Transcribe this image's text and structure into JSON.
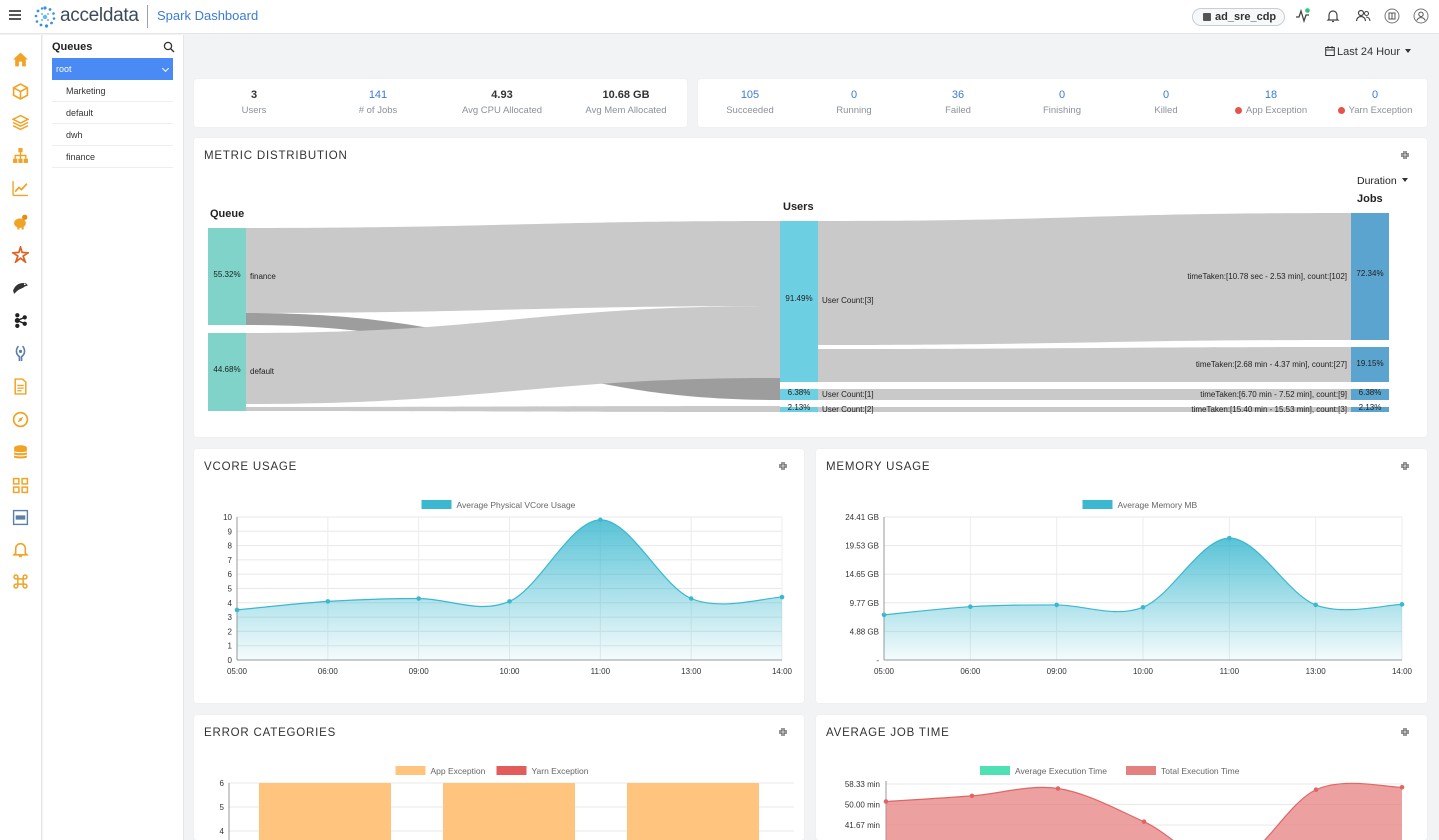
{
  "header": {
    "brand": "acceldata",
    "app_title": "Spark Dashboard",
    "cluster": "ad_sre_cdp"
  },
  "queues": {
    "title": "Queues",
    "root": "root",
    "items": [
      "Marketing",
      "default",
      "dwh",
      "finance"
    ]
  },
  "time_range": "Last 24 Hour",
  "summary_left": [
    {
      "value": "3",
      "label": "Users"
    },
    {
      "value": "141",
      "label": "# of Jobs"
    },
    {
      "value": "4.93",
      "label": "Avg CPU Allocated"
    },
    {
      "value": "10.68 GB",
      "label": "Avg Mem Allocated"
    }
  ],
  "summary_right": [
    {
      "value": "105",
      "label": "Succeeded"
    },
    {
      "value": "0",
      "label": "Running"
    },
    {
      "value": "36",
      "label": "Failed"
    },
    {
      "value": "0",
      "label": "Finishing"
    },
    {
      "value": "0",
      "label": "Killed"
    },
    {
      "value": "18",
      "label": "App Exception"
    },
    {
      "value": "0",
      "label": "Yarn Exception"
    }
  ],
  "metric": {
    "title": "METRIC DISTRIBUTION",
    "col_queue": "Queue",
    "col_users": "Users",
    "col_jobs": "Jobs",
    "dropdown": "Duration",
    "queue_nodes": [
      {
        "pct": "55.32%",
        "label": "finance"
      },
      {
        "pct": "44.68%",
        "label": "default"
      }
    ],
    "user_nodes": [
      {
        "pct": "91.49%",
        "label": "User Count:[3]"
      },
      {
        "pct": "6.38%",
        "label": "User Count:[1]"
      },
      {
        "pct": "2.13%",
        "label": "User Count:[2]"
      }
    ],
    "job_nodes": [
      {
        "pct": "72.34%",
        "label": "timeTaken:[10.78 sec - 2.53 min], count:[102]"
      },
      {
        "pct": "19.15%",
        "label": "timeTaken:[2.68 min - 4.37 min], count:[27]"
      },
      {
        "pct": "6.38%",
        "label": "timeTaken:[6.70 min - 7.52 min], count:[9]"
      },
      {
        "pct": "2.13%",
        "label": "timeTaken:[15.40 min - 15.53 min], count:[3]"
      }
    ]
  },
  "vcore": {
    "title": "VCORE USAGE",
    "chart_data": {
      "type": "area",
      "series": [
        {
          "name": "Average Physical VCore Usage",
          "values": [
            3.5,
            4.1,
            4.3,
            4.1,
            9.8,
            4.3,
            4.4
          ]
        }
      ],
      "x": [
        "05:00",
        "06:00",
        "09:00",
        "10:00",
        "11:00",
        "13:00",
        "14:00"
      ],
      "ylim": [
        0,
        10
      ],
      "yticks": [
        "0",
        "1",
        "2",
        "3",
        "4",
        "5",
        "6",
        "7",
        "8",
        "9",
        "10"
      ],
      "grid": true,
      "legend": "top",
      "color": "#3bb8cf"
    }
  },
  "memory": {
    "title": "MEMORY USAGE",
    "chart_data": {
      "type": "area",
      "series": [
        {
          "name": "Average Memory MB",
          "values": [
            7.7,
            9.1,
            9.4,
            9.0,
            20.8,
            9.4,
            9.5
          ]
        }
      ],
      "x": [
        "05:00",
        "06:00",
        "09:00",
        "10:00",
        "11:00",
        "13:00",
        "14:00"
      ],
      "ylim": [
        0,
        24.41
      ],
      "yticks": [
        "-",
        "4.88 GB",
        "9.77 GB",
        "14.65 GB",
        "19.53 GB",
        "24.41 GB"
      ],
      "grid": true,
      "legend": "top",
      "color": "#3bb8cf"
    }
  },
  "errors": {
    "title": "ERROR CATEGORIES",
    "chart_data": {
      "type": "bar",
      "series": [
        {
          "name": "App Exception",
          "values": [
            6,
            6,
            6
          ]
        },
        {
          "name": "Yarn Exception",
          "values": [
            0,
            0,
            0
          ]
        }
      ],
      "yticks": [
        "4",
        "5",
        "6"
      ],
      "legend": "top",
      "colors": [
        "#ffc57e",
        "#e25c5c"
      ]
    }
  },
  "avgjob": {
    "title": "AVERAGE JOB TIME",
    "chart_data": {
      "type": "area",
      "series": [
        {
          "name": "Average Execution Time",
          "values": []
        },
        {
          "name": "Total Execution Time",
          "values": [
            51.2,
            53.5,
            56.5,
            43.0,
            25.0,
            56.0,
            57.0
          ]
        }
      ],
      "yticks": [
        "41.67 min",
        "50.00 min",
        "58.33 min"
      ],
      "legend": "top",
      "colors": [
        "#4fe0b4",
        "#e58080"
      ]
    }
  }
}
